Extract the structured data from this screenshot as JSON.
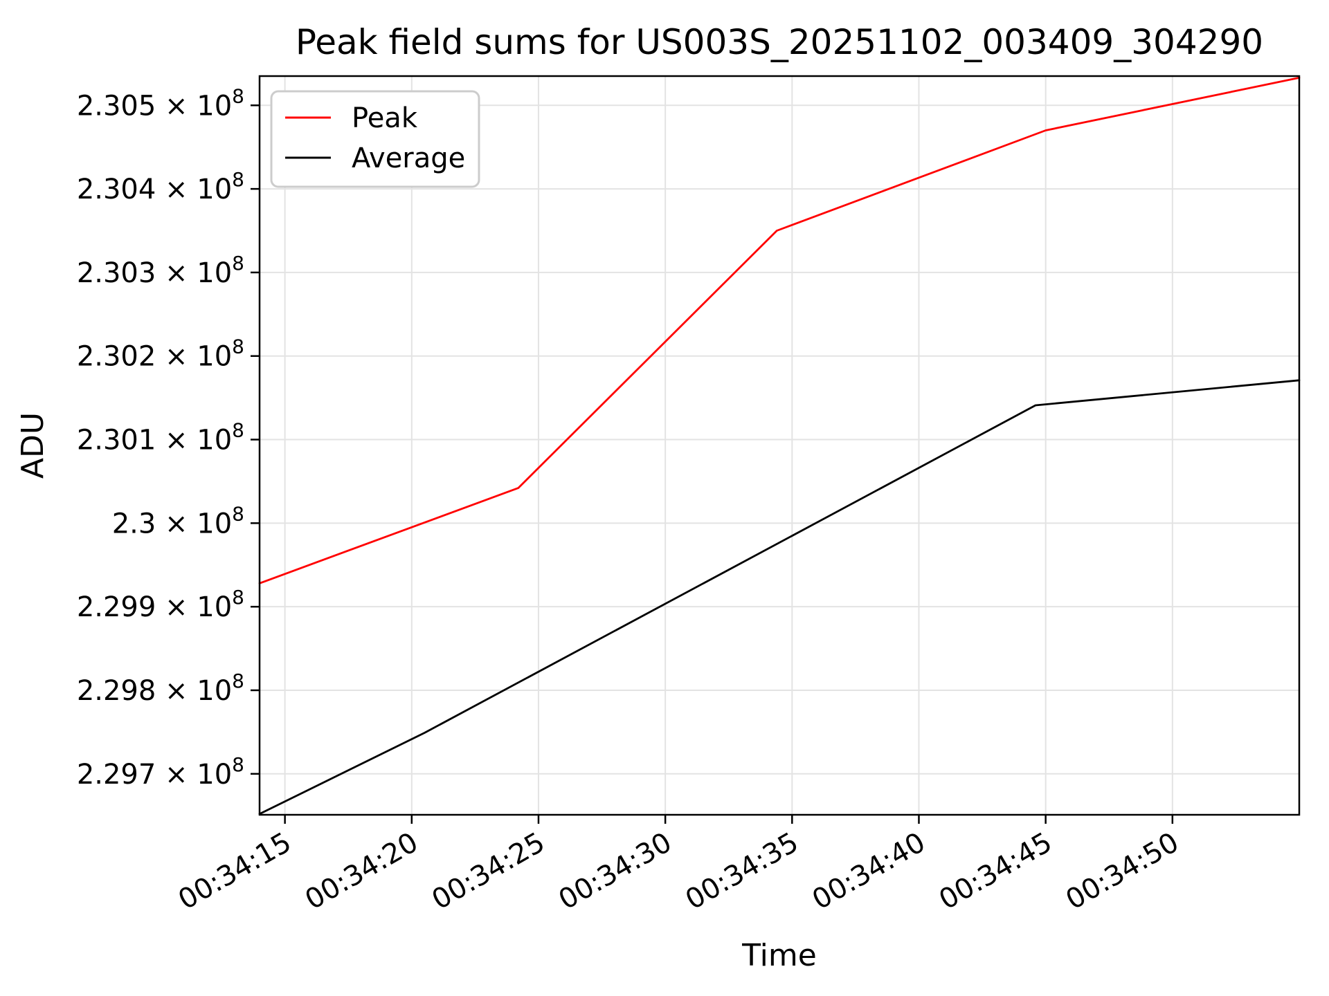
{
  "figure": {
    "background": "#ffffff"
  },
  "chart_data": {
    "type": "line",
    "title": "Peak field sums for US003S_20251102_003409_304290",
    "xlabel": "Time",
    "ylabel": "ADU",
    "x_unit": "time of day HH:MM:SS, seconds counted after 00:34:00",
    "xlim": [
      14,
      55
    ],
    "ylim": [
      229651000,
      230535000
    ],
    "grid": true,
    "x_tick_rotation": 30,
    "x_ticks": [
      {
        "t": 15,
        "label": "00:34:15"
      },
      {
        "t": 20,
        "label": "00:34:20"
      },
      {
        "t": 25,
        "label": "00:34:25"
      },
      {
        "t": 30,
        "label": "00:34:30"
      },
      {
        "t": 35,
        "label": "00:34:35"
      },
      {
        "t": 40,
        "label": "00:34:40"
      },
      {
        "t": 45,
        "label": "00:34:45"
      },
      {
        "t": 50,
        "label": "00:34:50"
      }
    ],
    "y_ticks": [
      {
        "v": 230500000,
        "label": "2.305 × 10^8"
      },
      {
        "v": 230400000,
        "label": "2.304 × 10^8"
      },
      {
        "v": 230300000,
        "label": "2.303 × 10^8"
      },
      {
        "v": 230200000,
        "label": "2.302 × 10^8"
      },
      {
        "v": 230100000,
        "label": "2.301 × 10^8"
      },
      {
        "v": 230000000,
        "label": "2.3 × 10^8"
      },
      {
        "v": 229900000,
        "label": "2.299 × 10^8"
      },
      {
        "v": 229800000,
        "label": "2.298 × 10^8"
      },
      {
        "v": 229700000,
        "label": "2.297 × 10^8"
      }
    ],
    "legend": {
      "position": "upper left",
      "entries": [
        {
          "name": "Peak",
          "color": "#ff0000"
        },
        {
          "name": "Average",
          "color": "#000000"
        }
      ]
    },
    "series": [
      {
        "name": "Peak",
        "color": "#ff0000",
        "points": [
          {
            "time": "00:34:14",
            "t": 14.0,
            "adu": 229928000
          },
          {
            "time": "00:34:24",
            "t": 24.2,
            "adu": 230042000
          },
          {
            "time": "00:34:34",
            "t": 34.4,
            "adu": 230350000
          },
          {
            "time": "00:34:45",
            "t": 45.0,
            "adu": 230470000
          },
          {
            "time": "00:34:55",
            "t": 55.0,
            "adu": 230533000
          }
        ]
      },
      {
        "name": "Average",
        "color": "#000000",
        "points": [
          {
            "time": "00:34:14",
            "t": 14.0,
            "adu": 229652000
          },
          {
            "time": "00:34:20",
            "t": 20.5,
            "adu": 229749000
          },
          {
            "time": "00:34:45",
            "t": 44.6,
            "adu": 230141000
          },
          {
            "time": "00:34:55",
            "t": 55.0,
            "adu": 230171000
          }
        ]
      }
    ],
    "colors": {
      "grid": "#e3e3e3",
      "spine": "#000000",
      "text": "#000000",
      "legend_border": "#cccccc"
    }
  }
}
